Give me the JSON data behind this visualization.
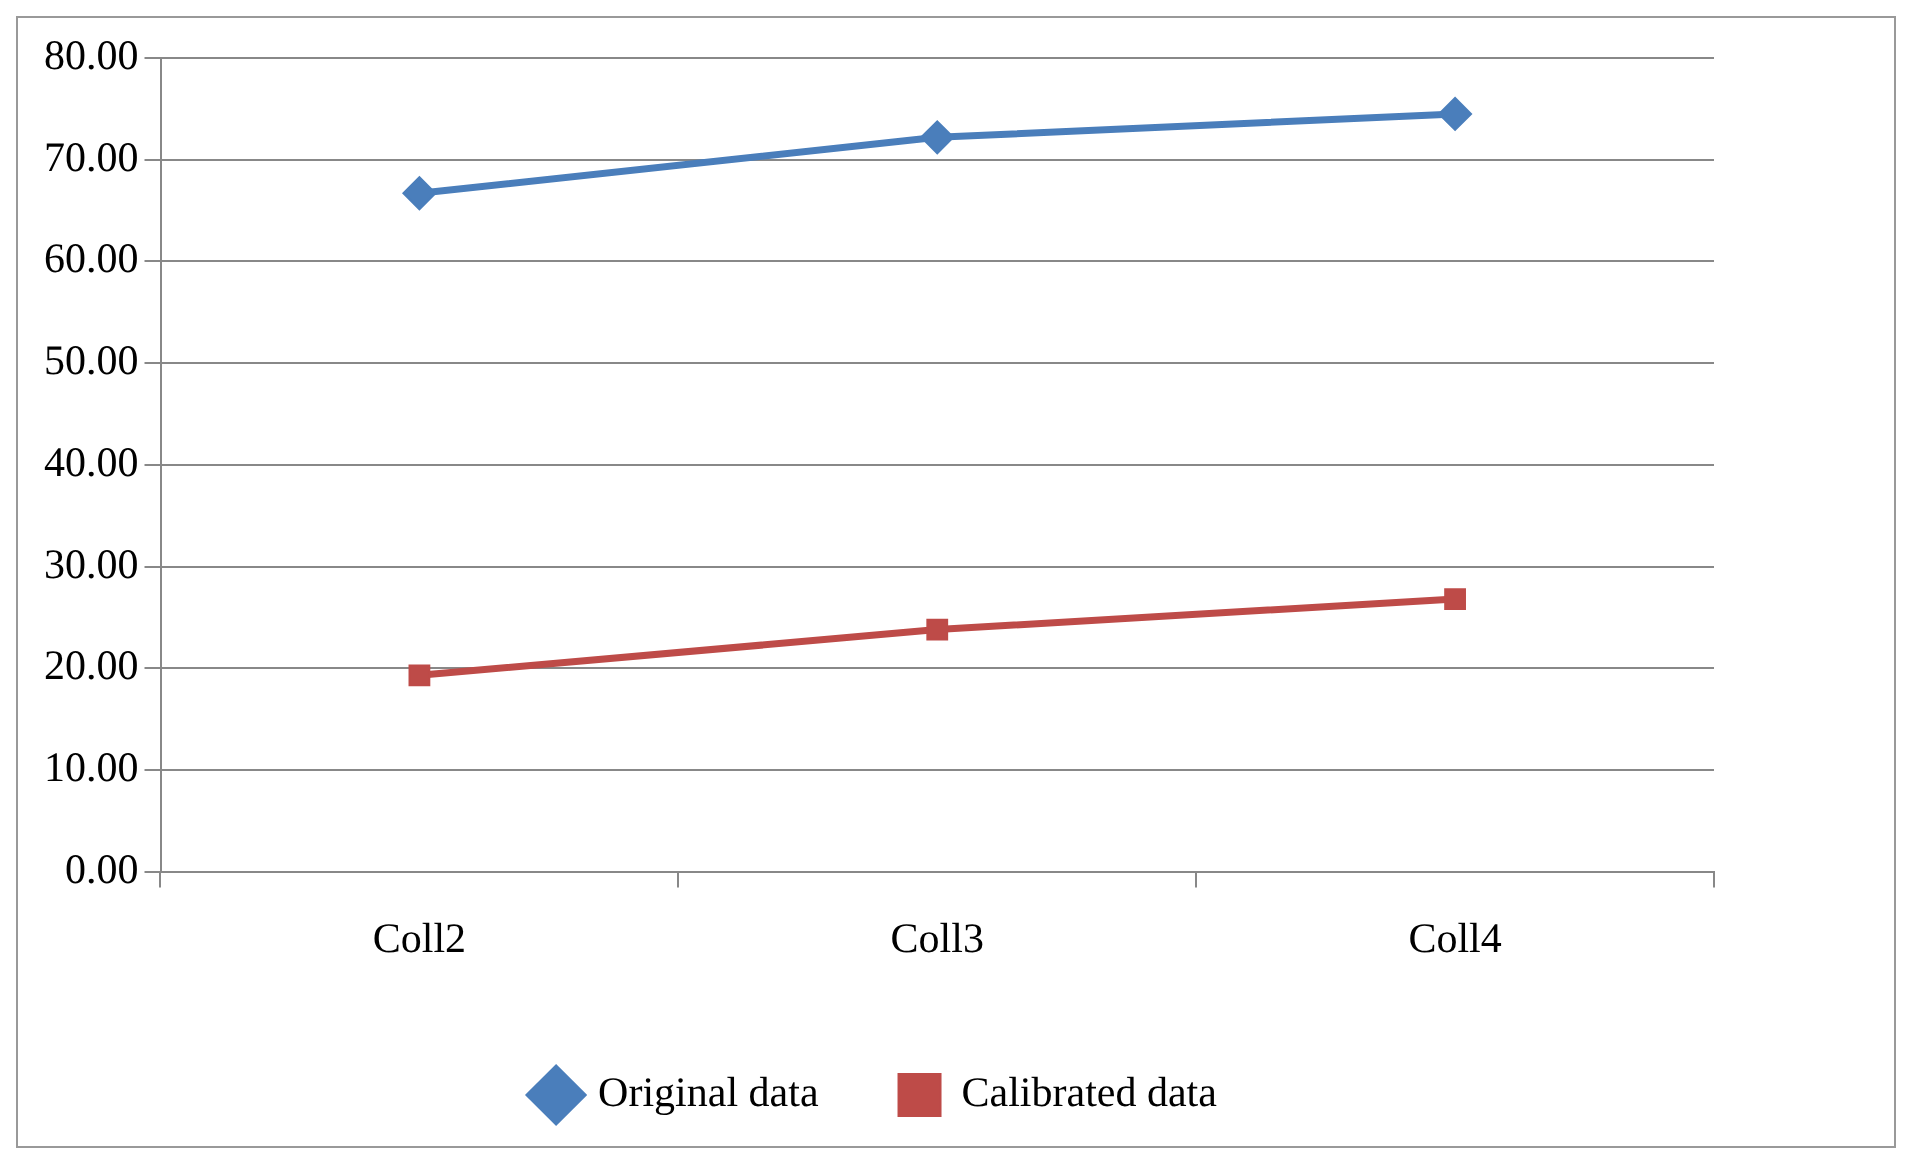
{
  "chart_data": {
    "type": "line",
    "categories": [
      "Coll2",
      "Coll3",
      "Coll4"
    ],
    "series": [
      {
        "name": "Original data",
        "color": "#4a7ebb",
        "marker": "diamond",
        "values": [
          66.7,
          72.2,
          74.5
        ]
      },
      {
        "name": "Calibrated data",
        "color": "#be4b48",
        "marker": "square",
        "values": [
          19.3,
          23.8,
          26.8
        ]
      }
    ],
    "ylim": [
      0,
      80
    ],
    "yticks": [
      {
        "value": 0,
        "label": "0.00"
      },
      {
        "value": 10,
        "label": "10.00"
      },
      {
        "value": 20,
        "label": "20.00"
      },
      {
        "value": 30,
        "label": "30.00"
      },
      {
        "value": 40,
        "label": "40.00"
      },
      {
        "value": 50,
        "label": "50.00"
      },
      {
        "value": 60,
        "label": "60.00"
      },
      {
        "value": 70,
        "label": "70.00"
      },
      {
        "value": 80,
        "label": "80.00"
      }
    ],
    "grid": "y",
    "legend": "bottom",
    "line_style": "solid"
  }
}
